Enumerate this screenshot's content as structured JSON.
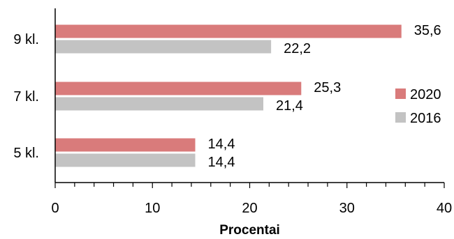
{
  "chart_data": {
    "type": "bar",
    "orientation": "horizontal",
    "categories": [
      "9 kl.",
      "7 kl.",
      "5 kl."
    ],
    "series": [
      {
        "name": "2020",
        "values": [
          35.6,
          25.3,
          14.4
        ],
        "labels": [
          "35,6",
          "25,3",
          "14,4"
        ],
        "color": "#d97b7b"
      },
      {
        "name": "2016",
        "values": [
          22.2,
          21.4,
          14.4
        ],
        "labels": [
          "22,2",
          "21,4",
          "14,4"
        ],
        "color": "#c3c3c3"
      }
    ],
    "xlabel": "Procentai",
    "ylabel": "",
    "xlim": [
      0,
      40
    ],
    "xticks": [
      "0",
      "10",
      "20",
      "30",
      "40"
    ],
    "grid": false,
    "legend_position": "right"
  }
}
